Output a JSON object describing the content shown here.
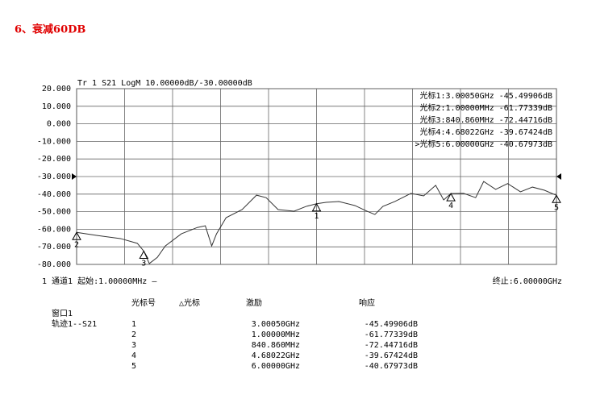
{
  "heading": "6、衰减60DB",
  "chart_data": {
    "type": "line",
    "title": "Tr 1  S21 LogM 10.00000dB/-30.00000dB",
    "x": [
      0.001,
      0.25,
      0.55,
      0.76,
      0.84086,
      0.91,
      1.01,
      1.11,
      1.31,
      1.51,
      1.61,
      1.69,
      1.75,
      1.87,
      2.07,
      2.25,
      2.37,
      2.52,
      2.72,
      2.87,
      3.0005,
      3.12,
      3.28,
      3.48,
      3.63,
      3.73,
      3.83,
      3.98,
      4.18,
      4.34,
      4.49,
      4.59,
      4.68022,
      4.84,
      4.99,
      5.09,
      5.24,
      5.39,
      5.55,
      5.7,
      5.85,
      6.0
    ],
    "series": [
      {
        "name": "S21",
        "color": "#333333",
        "values": [
          -61.77339,
          -63.5,
          -65.3,
          -68,
          -72.44716,
          -79.5,
          -76,
          -69.5,
          -62.6,
          -59,
          -58,
          -69.5,
          -62.6,
          -53.4,
          -48.8,
          -40.6,
          -42,
          -48.8,
          -49.7,
          -47,
          -45.49906,
          -44.7,
          -44.2,
          -46.5,
          -49.7,
          -51.6,
          -47,
          -44.2,
          -39.6,
          -41,
          -35,
          -43.3,
          -39.67424,
          -39.6,
          -42,
          -32.8,
          -37.3,
          -34,
          -38.7,
          -36,
          -37.8,
          -40.67973
        ]
      }
    ],
    "xlim": [
      0.001,
      6.0
    ],
    "ylim": [
      -80,
      20
    ],
    "yticks": [
      {
        "value": 20,
        "label": "20.000"
      },
      {
        "value": 10,
        "label": "10.000"
      },
      {
        "value": 0,
        "label": "0.000"
      },
      {
        "value": -10,
        "label": "-10.000"
      },
      {
        "value": -20,
        "label": "-20.000"
      },
      {
        "value": -30,
        "label": "-30.000"
      },
      {
        "value": -40,
        "label": "-40.000"
      },
      {
        "value": -50,
        "label": "-50.000"
      },
      {
        "value": -60,
        "label": "-60.000"
      },
      {
        "value": -70,
        "label": "-70.000"
      },
      {
        "value": -80,
        "label": "-80.000"
      }
    ],
    "grid": true,
    "ref_level": -30,
    "markers": [
      {
        "label": "1",
        "x": 3.0005,
        "y": -45.49906
      },
      {
        "label": "2",
        "x": 0.001,
        "y": -61.77339
      },
      {
        "label": "3",
        "x": 0.84086,
        "y": -72.44716
      },
      {
        "label": "4",
        "x": 4.68022,
        "y": -39.67424
      },
      {
        "label": "5",
        "x": 6.0,
        "y": -40.67973
      }
    ],
    "marker_readouts": [
      "光标1:3.00050GHz -45.49906dB",
      "光标2:1.00000MHz -61.77339dB",
      "光标3:840.860MHz -72.44716dB",
      "光标4:4.68022GHz -39.67424dB",
      ">光标5:6.00000GHz -40.67973dB"
    ],
    "channel": "1  通道1  起始:1.00000MHz —",
    "stop": "终止:6.00000GHz"
  },
  "table": {
    "headers": [
      "光标号",
      "△光标",
      "激励",
      "响应"
    ],
    "window": "窗口1",
    "trace": "轨迹1--S21",
    "rows": [
      [
        "1",
        "3.00050GHz",
        "-45.49906dB"
      ],
      [
        "2",
        "1.00000MHz",
        "-61.77339dB"
      ],
      [
        "3",
        "840.860MHz",
        "-72.44716dB"
      ],
      [
        "4",
        "4.68022GHz",
        "-39.67424dB"
      ],
      [
        "5",
        "6.00000GHz",
        "-40.67973dB"
      ]
    ]
  }
}
